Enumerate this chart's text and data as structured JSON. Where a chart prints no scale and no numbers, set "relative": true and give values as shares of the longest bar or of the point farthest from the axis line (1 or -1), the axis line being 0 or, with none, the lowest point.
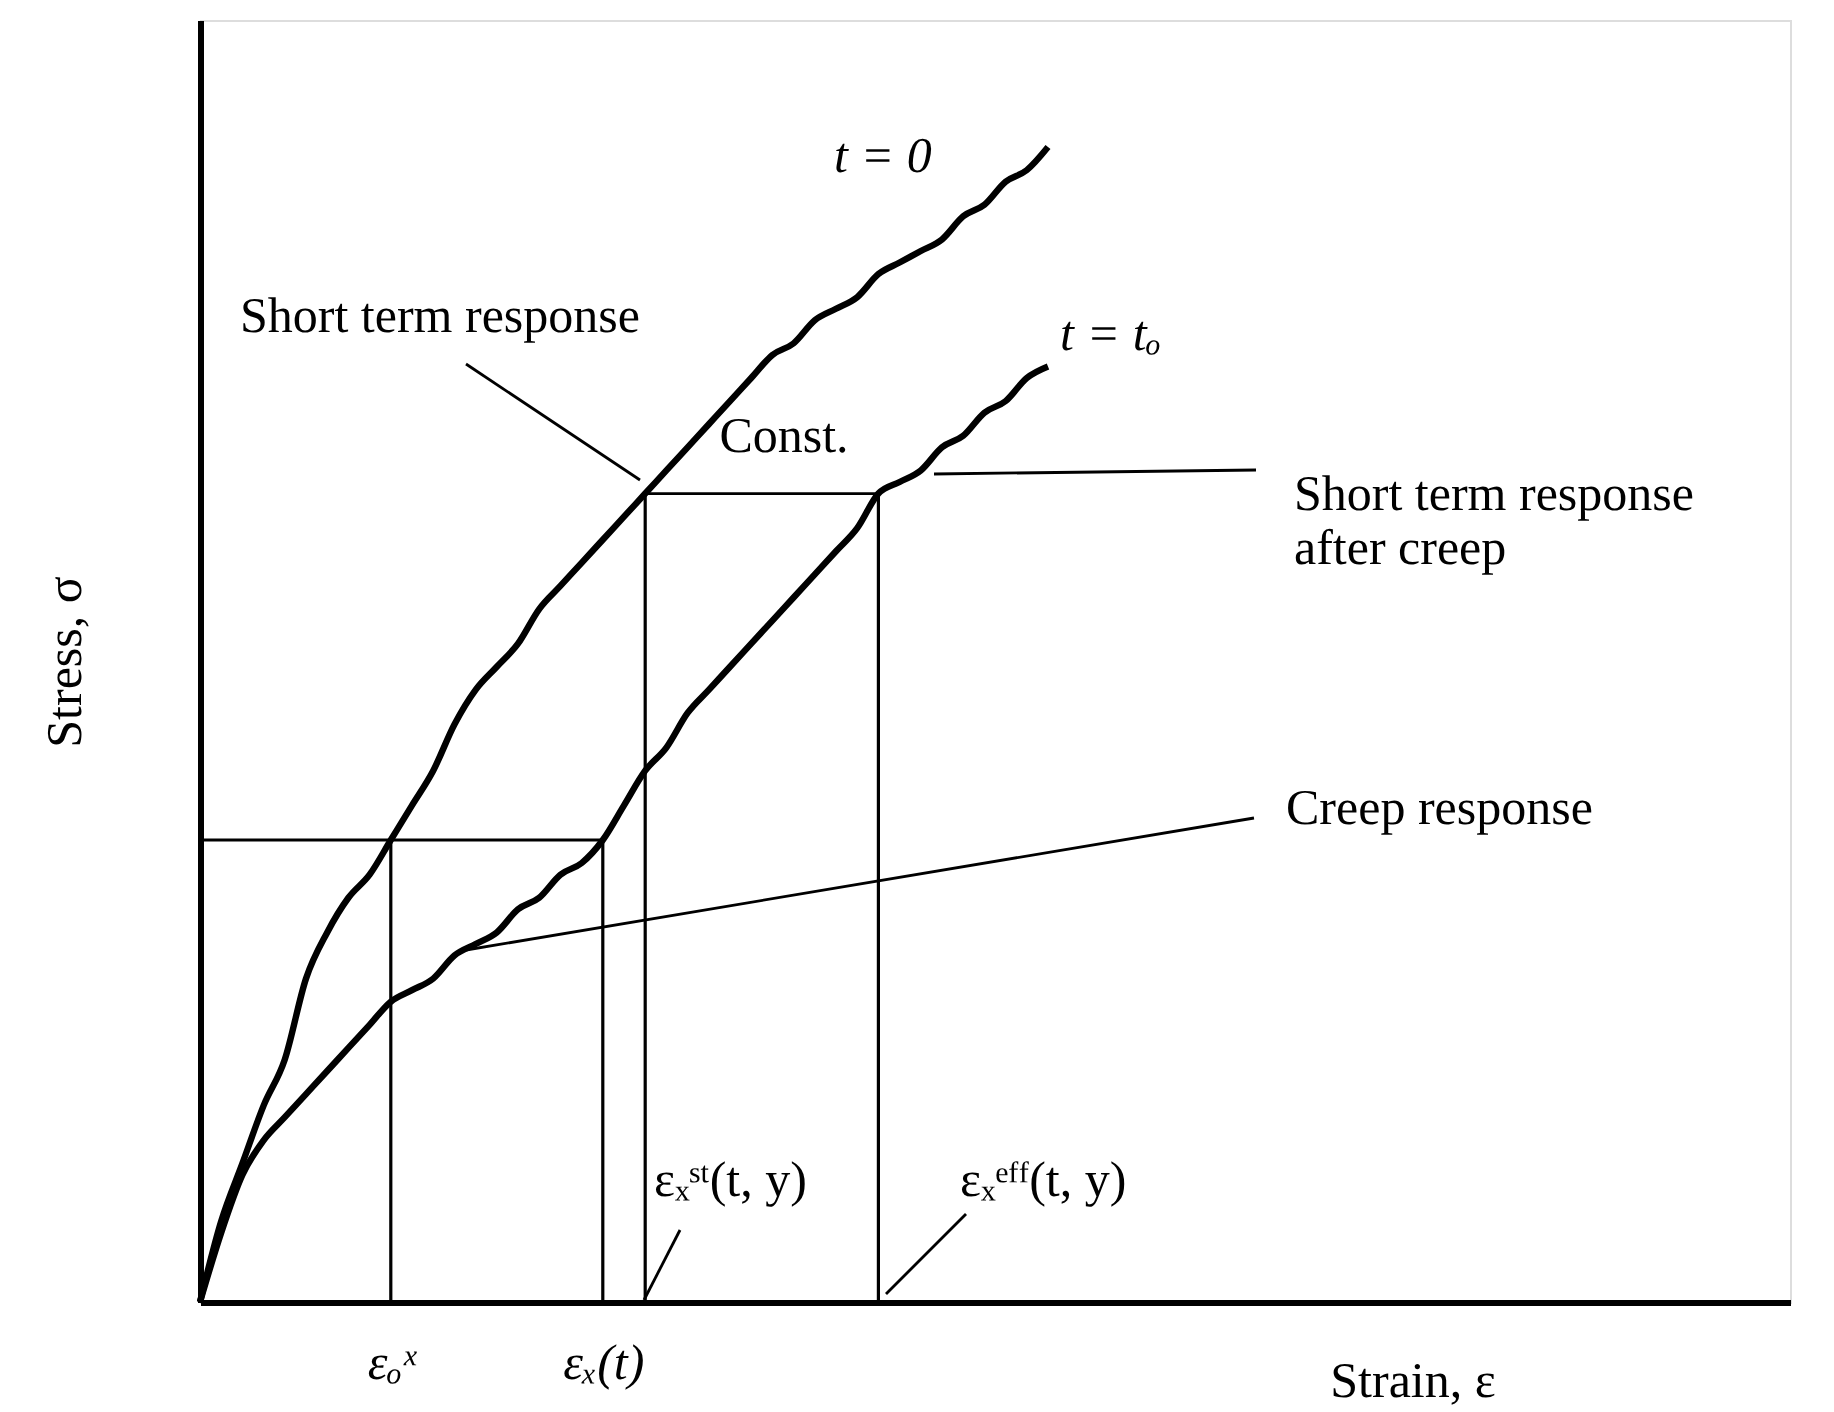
{
  "chart_data": {
    "type": "line",
    "relative": true,
    "xlabel": "Strain, ε",
    "ylabel": "Stress, σ",
    "tick_labels": "x",
    "categories": [
      null,
      null,
      null,
      null,
      null,
      null,
      null,
      null,
      null,
      "εₒˣ",
      null,
      null,
      null,
      null,
      null,
      null,
      null,
      null,
      null,
      "εₓ(t)",
      null,
      null,
      null,
      null,
      null,
      null,
      null,
      null,
      null,
      null,
      null,
      null,
      null,
      null,
      null,
      null,
      null,
      null,
      null,
      null,
      null,
      null,
      null,
      null,
      null,
      null,
      null,
      null,
      null,
      null,
      null,
      null,
      null,
      null,
      null,
      null,
      null,
      null,
      null,
      null,
      null,
      null,
      null,
      null,
      null,
      null,
      null,
      null,
      null,
      null,
      null,
      null,
      null,
      null,
      null,
      null
    ],
    "series": [
      {
        "name": "t = 0",
        "color": "#000000",
        "values": [
          0,
          0.07,
          0.12,
          0.17,
          0.21,
          0.28,
          0.32,
          0.35,
          0.37,
          0.4,
          0.43,
          0.46,
          0.5,
          0.53,
          0.55,
          0.57,
          0.6,
          0.62,
          0.64,
          0.66,
          0.68,
          0.7,
          0.72,
          0.74,
          0.76,
          0.78,
          0.8,
          0.82,
          0.83,
          0.85,
          0.86,
          0.87,
          0.89,
          0.9,
          0.91,
          0.92,
          0.94,
          0.95,
          0.97,
          0.98,
          1.0,
          null,
          null,
          null,
          null,
          null,
          null,
          null,
          null,
          null,
          null,
          null,
          null,
          null,
          null,
          null,
          null,
          null,
          null,
          null,
          null,
          null,
          null,
          null,
          null,
          null,
          null,
          null,
          null,
          null,
          null,
          null,
          null,
          null,
          null,
          null
        ]
      },
      {
        "name": "t = tₒ",
        "color": "#000000",
        "values": [
          0,
          0.06,
          0.11,
          0.14,
          0.16,
          0.18,
          0.2,
          0.22,
          0.24,
          0.26,
          0.27,
          0.28,
          0.3,
          0.31,
          0.32,
          0.34,
          0.35,
          0.37,
          0.38,
          0.4,
          0.43,
          0.46,
          0.48,
          0.51,
          0.53,
          0.55,
          0.57,
          0.59,
          0.61,
          0.63,
          0.65,
          0.67,
          0.7,
          0.71,
          0.72,
          0.74,
          0.75,
          0.77,
          0.78,
          0.8,
          0.81,
          null,
          null,
          null,
          null,
          null,
          null,
          null,
          null,
          null,
          null,
          null,
          null,
          null,
          null,
          null,
          null,
          null,
          null,
          null,
          null,
          null,
          null,
          null,
          null,
          null,
          null,
          null,
          null,
          null,
          null,
          null,
          null,
          null,
          null,
          null
        ]
      },
      {
        "color": "#000000",
        "values": [
          0.4,
          0.4,
          0.4,
          0.4,
          0.4,
          0.4,
          0.4,
          0.4,
          0.4,
          0.4,
          0.4,
          0.4,
          0.4,
          0.4,
          0.4,
          0.4,
          0.4,
          0.4,
          0.4,
          0.4,
          null,
          null,
          null,
          null,
          null,
          null,
          null,
          null,
          null,
          null,
          null,
          null,
          null,
          null,
          null,
          null,
          null,
          null,
          null,
          null,
          null,
          null,
          null,
          null,
          null,
          null,
          null,
          null,
          null,
          null,
          null,
          null,
          null,
          null,
          null,
          null,
          null,
          null,
          null,
          null,
          null,
          null,
          null,
          null,
          null,
          null,
          null,
          null,
          null,
          null,
          null,
          null,
          null,
          null,
          null,
          null
        ]
      },
      {
        "color": "#000000",
        "values": [
          null,
          null,
          null,
          null,
          null,
          null,
          null,
          null,
          null,
          null,
          null,
          null,
          null,
          null,
          null,
          null,
          null,
          null,
          null,
          null,
          null,
          0.7,
          0.7,
          0.7,
          0.7,
          0.7,
          0.7,
          0.7,
          0.7,
          0.7,
          0.7,
          0.7,
          0.7,
          null,
          null,
          null,
          null,
          null,
          null,
          null,
          null,
          null,
          null,
          null,
          null,
          null,
          null,
          null,
          null,
          null,
          null,
          null,
          null,
          null,
          null,
          null,
          null,
          null,
          null,
          null,
          null,
          null,
          null,
          null,
          null,
          null,
          null,
          null,
          null,
          null,
          null,
          null,
          null,
          null,
          null,
          null
        ]
      },
      {
        "type": "bar",
        "color": "#000000",
        "values": [
          null,
          null,
          null,
          null,
          null,
          null,
          null,
          null,
          null,
          0.4,
          null,
          null,
          null,
          null,
          null,
          null,
          null,
          null,
          null,
          0.4,
          null,
          0.7,
          null,
          null,
          null,
          null,
          null,
          null,
          null,
          null,
          null,
          null,
          0.7,
          null,
          null,
          null,
          null,
          null,
          null,
          null,
          null,
          null,
          null,
          null,
          null,
          null,
          null,
          null,
          null,
          null,
          null,
          null,
          null,
          null,
          null,
          null,
          null,
          null,
          null,
          null,
          null,
          null,
          null,
          null,
          null,
          null,
          null,
          null,
          null,
          null,
          null,
          null,
          null,
          null,
          null,
          null
        ]
      }
    ],
    "annotations": [
      "Short term response",
      "Const.",
      "Short term response\nafter creep",
      "Creep response",
      "εₓˢᵗ(t, y)",
      "εₓᵉᶠᶠ(t, y)"
    ]
  }
}
